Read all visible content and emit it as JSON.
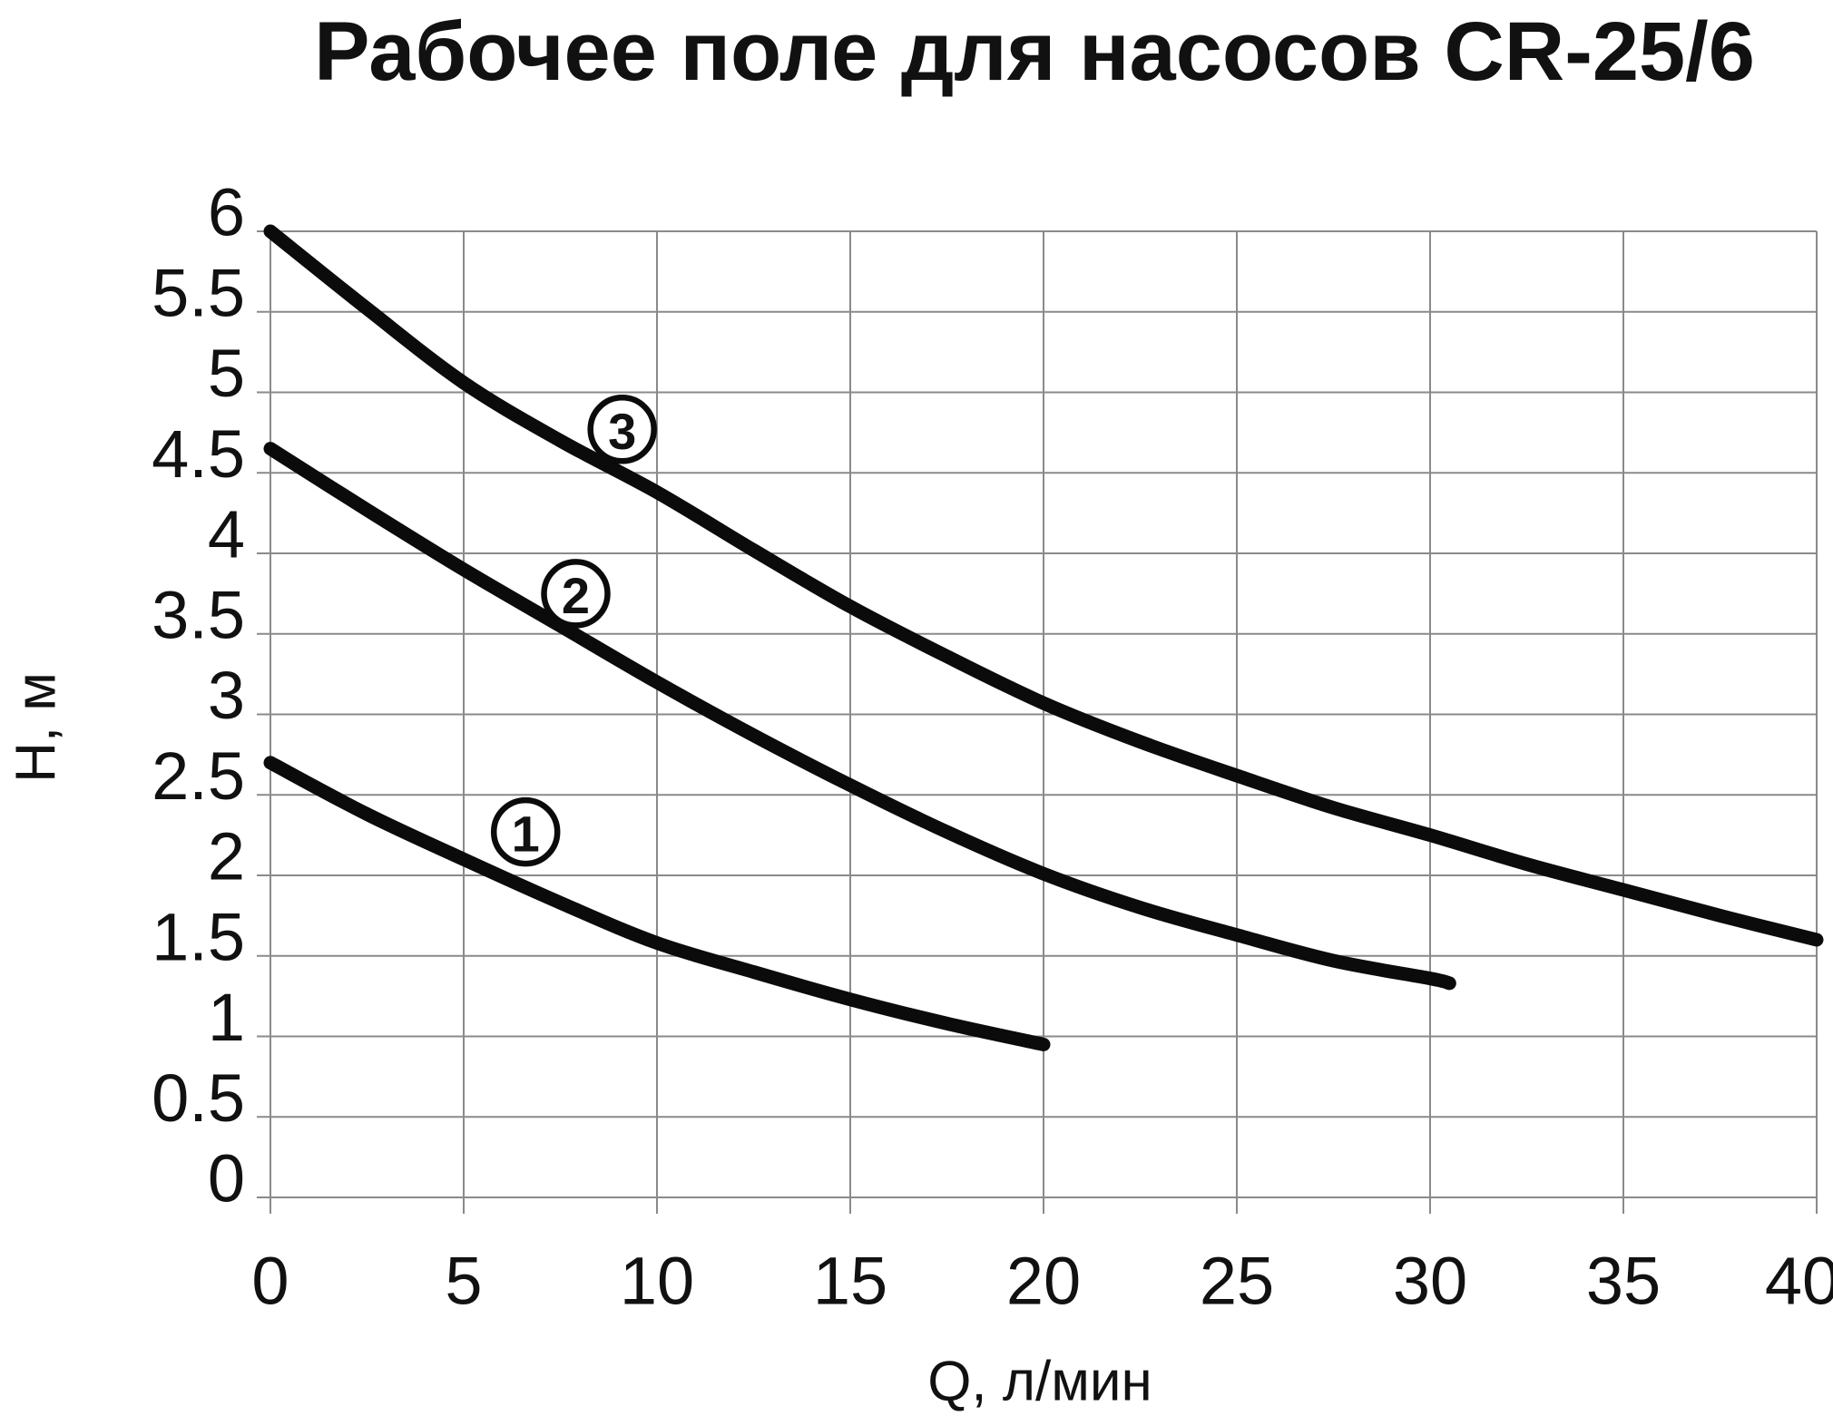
{
  "page": {
    "background": "#ffffff",
    "text_color": "#111111"
  },
  "chart_data": {
    "type": "line",
    "title": "Рабочее поле для насосов CR-25/6",
    "xlabel": "Q, л/мин",
    "ylabel": "Н, м",
    "xlim": [
      0,
      40
    ],
    "ylim": [
      0,
      6
    ],
    "grid": true,
    "legend_position": "none",
    "grid_color": "#8a8a8a",
    "curve_color": "#0b0b0b",
    "x_ticks": [
      0,
      5,
      10,
      15,
      20,
      25,
      30,
      35,
      40
    ],
    "x_tick_labels": [
      "0",
      "5",
      "10",
      "15",
      "20",
      "25",
      "30",
      "35",
      "40"
    ],
    "y_ticks": [
      0,
      0.5,
      1,
      1.5,
      2,
      2.5,
      3,
      3.5,
      4,
      4.5,
      5,
      5.5,
      6
    ],
    "y_tick_labels": [
      "0",
      "0.5",
      "1",
      "1.5",
      "2",
      "2.5",
      "3",
      "3.5",
      "4",
      "4.5",
      "5",
      "5.5",
      "6"
    ],
    "series": [
      {
        "name": "curve-1",
        "label": "1",
        "label_pos": {
          "q": 6.6,
          "h": 2.27
        },
        "points": [
          [
            0,
            2.7
          ],
          [
            2.5,
            2.38
          ],
          [
            5,
            2.1
          ],
          [
            7.5,
            1.83
          ],
          [
            10,
            1.58
          ],
          [
            12.5,
            1.4
          ],
          [
            15,
            1.23
          ],
          [
            17.5,
            1.08
          ],
          [
            20,
            0.95
          ]
        ]
      },
      {
        "name": "curve-2",
        "label": "2",
        "label_pos": {
          "q": 7.9,
          "h": 3.75
        },
        "points": [
          [
            0,
            4.65
          ],
          [
            2.5,
            4.27
          ],
          [
            5,
            3.9
          ],
          [
            7.5,
            3.55
          ],
          [
            10,
            3.2
          ],
          [
            12.5,
            2.87
          ],
          [
            15,
            2.56
          ],
          [
            17.5,
            2.27
          ],
          [
            20,
            2.01
          ],
          [
            22.5,
            1.8
          ],
          [
            25,
            1.63
          ],
          [
            27.5,
            1.47
          ],
          [
            30,
            1.36
          ],
          [
            30.5,
            1.33
          ]
        ]
      },
      {
        "name": "curve-3",
        "label": "3",
        "label_pos": {
          "q": 9.1,
          "h": 4.77
        },
        "points": [
          [
            0,
            6.0
          ],
          [
            2.5,
            5.52
          ],
          [
            5,
            5.06
          ],
          [
            7.5,
            4.7
          ],
          [
            10,
            4.38
          ],
          [
            12.5,
            4.02
          ],
          [
            15,
            3.67
          ],
          [
            17.5,
            3.36
          ],
          [
            20,
            3.07
          ],
          [
            22.5,
            2.83
          ],
          [
            25,
            2.62
          ],
          [
            27.5,
            2.42
          ],
          [
            30,
            2.25
          ],
          [
            32.5,
            2.07
          ],
          [
            35,
            1.91
          ],
          [
            37.5,
            1.75
          ],
          [
            40,
            1.6
          ]
        ]
      }
    ]
  }
}
